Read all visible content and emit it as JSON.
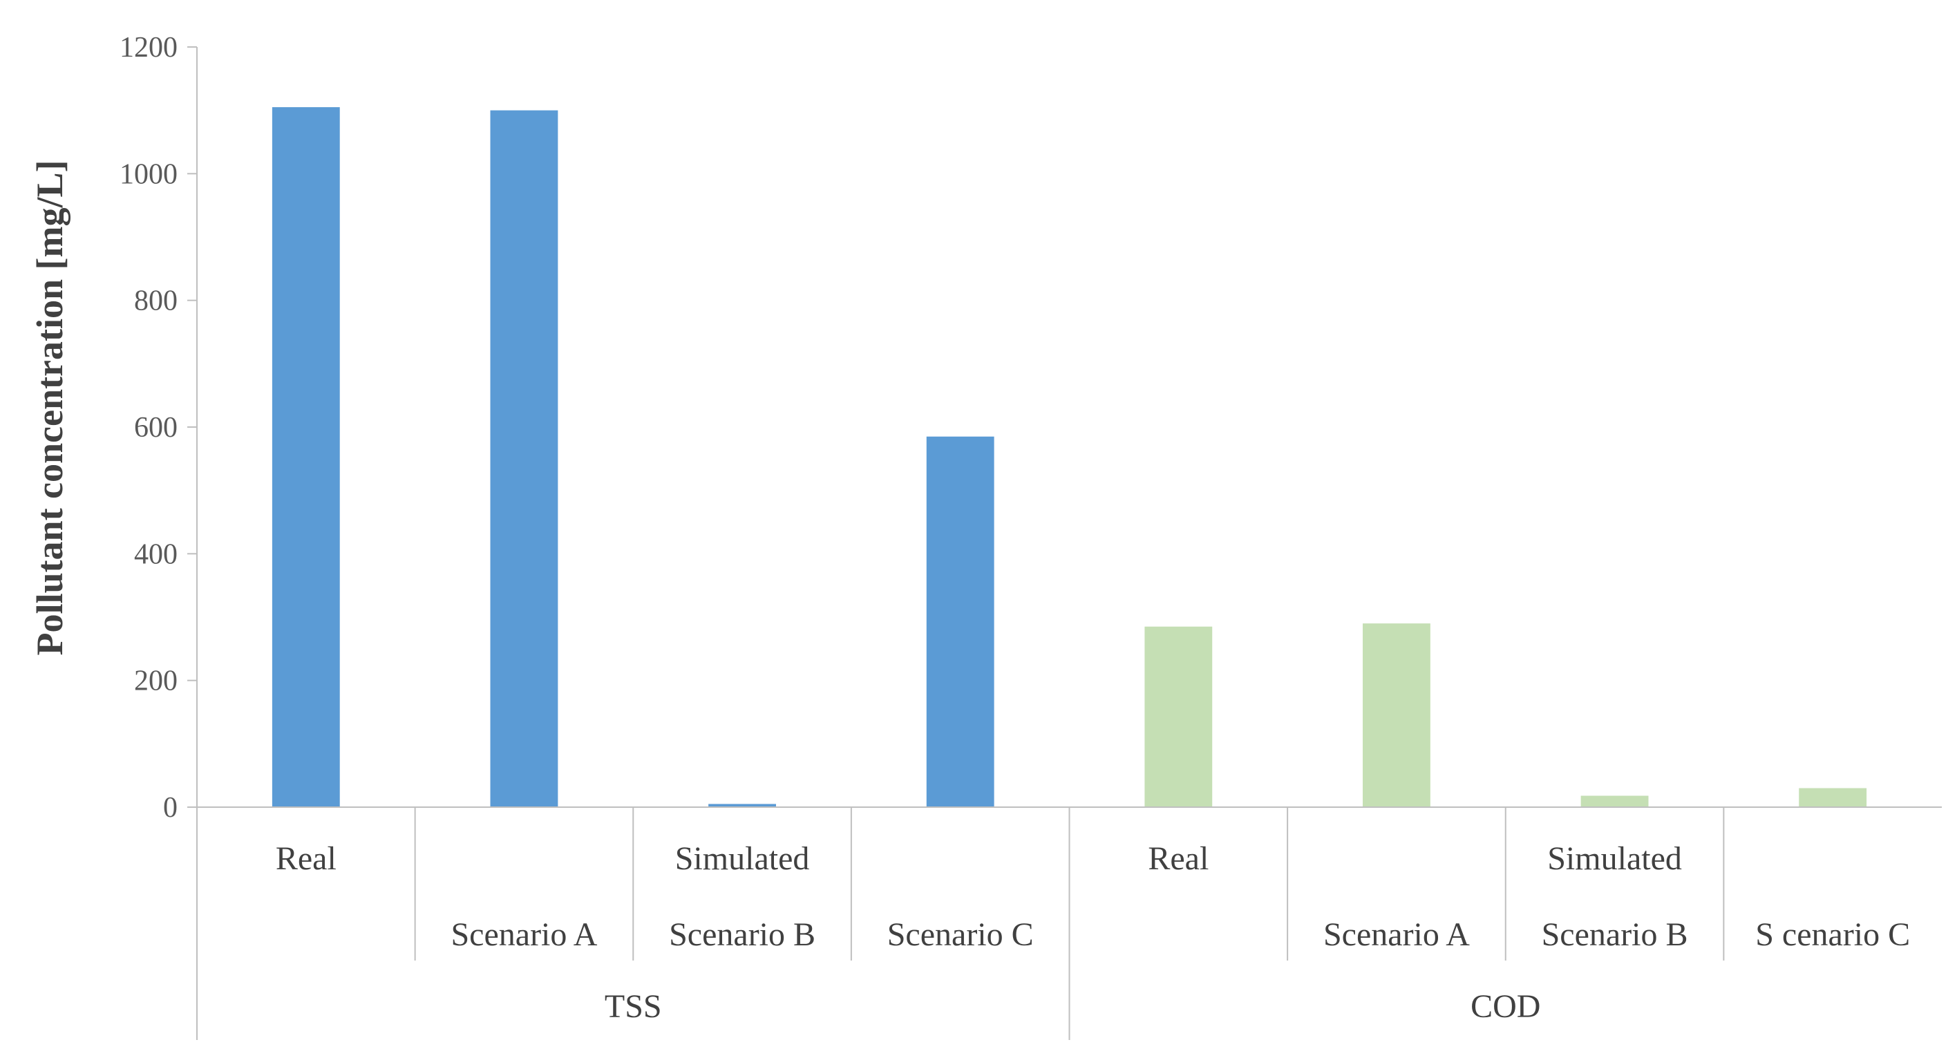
{
  "chart_data": {
    "type": "bar",
    "ylabel": "Pollutant concentration [mg/L]",
    "ylim": [
      0,
      1200
    ],
    "yticks": [
      0,
      200,
      400,
      600,
      800,
      1000,
      1200
    ],
    "grid": false,
    "legend": "none",
    "groups": [
      {
        "name": "TSS",
        "color": "#5B9BD5",
        "bars": [
          {
            "label_top": "Real",
            "label_bottom": "",
            "value": 1105
          },
          {
            "label_top": "",
            "label_bottom": "Scenario A",
            "value": 1100
          },
          {
            "label_top": "Simulated",
            "label_bottom": "Scenario B",
            "value": 5
          },
          {
            "label_top": "",
            "label_bottom": "Scenario C",
            "value": 585
          }
        ]
      },
      {
        "name": "COD",
        "color": "#C5DFB4",
        "bars": [
          {
            "label_top": "Real",
            "label_bottom": "",
            "value": 285
          },
          {
            "label_top": "",
            "label_bottom": "Scenario A",
            "value": 290
          },
          {
            "label_top": "Simulated",
            "label_bottom": "Scenario B",
            "value": 18
          },
          {
            "label_top": "",
            "label_bottom": "S cenario C",
            "value": 30
          }
        ]
      }
    ]
  }
}
